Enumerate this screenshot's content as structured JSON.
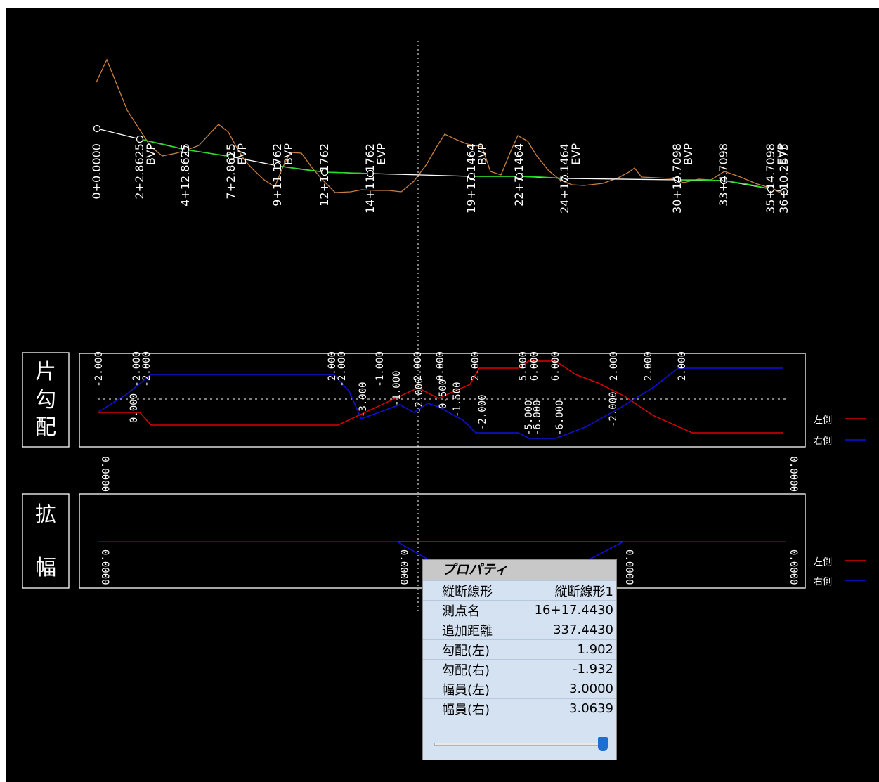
{
  "profile": {
    "stations": [
      {
        "label": "0+0.0000",
        "tag": ""
      },
      {
        "label": "2+2.8625",
        "tag": "BVP"
      },
      {
        "label": "4+12.8625",
        "tag": ""
      },
      {
        "label": "7+2.8625",
        "tag": "EVP"
      },
      {
        "label": "9+11.1762",
        "tag": "BVP"
      },
      {
        "label": "12+1.1762",
        "tag": ""
      },
      {
        "label": "14+11.1762",
        "tag": "EVP"
      },
      {
        "label": "19+17.1464",
        "tag": "BVP"
      },
      {
        "label": "22+7.1464",
        "tag": ""
      },
      {
        "label": "24+17.1464",
        "tag": "EVP"
      },
      {
        "label": "30+14.7098",
        "tag": "BVP"
      },
      {
        "label": "33+4.7098",
        "tag": ""
      },
      {
        "label": "35+14.7098",
        "tag": "EVP"
      },
      {
        "label": "36+10.2575",
        "tag": ""
      }
    ]
  },
  "superelevation": {
    "title_chars": [
      "片",
      "勾",
      "配"
    ],
    "legend_left": "左側",
    "legend_right": "右側",
    "labels": [
      {
        "t": "-2.000"
      },
      {
        "t": "-2.000"
      },
      {
        "t": "-2.000"
      },
      {
        "t": "2.000"
      },
      {
        "t": "-2.000"
      },
      {
        "t": "-1.000"
      },
      {
        "t": "2.000"
      },
      {
        "t": "0.000"
      },
      {
        "t": "2.000"
      },
      {
        "t": "5.000"
      },
      {
        "t": "6.000"
      },
      {
        "t": "2.000"
      },
      {
        "t": "2.000"
      },
      {
        "t": "2.000"
      },
      {
        "t": "6.000"
      },
      {
        "t": "-3.000"
      },
      {
        "t": "-1.000"
      },
      {
        "t": "-2.000"
      },
      {
        "t": "0.500"
      },
      {
        "t": "-1.500"
      },
      {
        "t": "-2.000"
      },
      {
        "t": "-5.000"
      },
      {
        "t": "-6.000"
      },
      {
        "t": "-2.000"
      },
      {
        "t": "-6.000"
      },
      {
        "t": "0.000"
      }
    ],
    "colors": {
      "left": "#e00000",
      "right": "#1010e0"
    }
  },
  "widening": {
    "title_chars": [
      "拡",
      "幅"
    ],
    "legend_left": "左側",
    "legend_right": "右側",
    "labels": [
      {
        "t": "0.0000"
      },
      {
        "t": "0.0000"
      },
      {
        "t": "0.0000"
      },
      {
        "t": "0.0000"
      },
      {
        "t": "0.0000"
      },
      {
        "t": "0.0000"
      }
    ]
  },
  "properties": {
    "title": "プロパティ",
    "rows": [
      {
        "key": "縦断線形",
        "value": "縦断線形1"
      },
      {
        "key": "測点名",
        "value": "16+17.4430"
      },
      {
        "key": "追加距離",
        "value": "337.4430"
      },
      {
        "key": "勾配(左)",
        "value": "1.902"
      },
      {
        "key": "勾配(右)",
        "value": "-1.932"
      },
      {
        "key": "幅員(左)",
        "value": "3.0000"
      },
      {
        "key": "幅員(右)",
        "value": "3.0639"
      }
    ],
    "slider_fraction": 0.97
  }
}
